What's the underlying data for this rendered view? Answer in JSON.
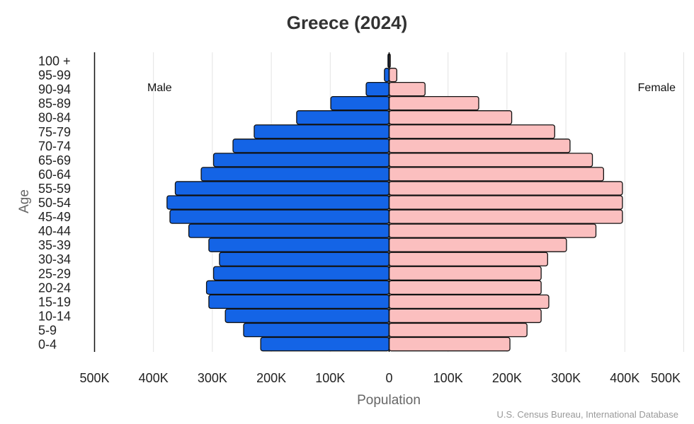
{
  "chart_data": {
    "type": "bar",
    "orientation": "horizontal-pyramid",
    "title": "Greece (2024)",
    "xlabel": "Population",
    "ylabel": "Age",
    "xlim": [
      -500000,
      500000
    ],
    "xticks": [
      "500K",
      "400K",
      "300K",
      "200K",
      "100K",
      "0",
      "100K",
      "200K",
      "300K",
      "400K",
      "500K"
    ],
    "categories": [
      "0-4",
      "5-9",
      "10-14",
      "15-19",
      "20-24",
      "25-29",
      "30-34",
      "35-39",
      "40-44",
      "45-49",
      "50-54",
      "55-59",
      "60-64",
      "65-69",
      "70-74",
      "75-79",
      "80-84",
      "85-89",
      "90-94",
      "95-99",
      "100 +"
    ],
    "series": [
      {
        "name": "Male",
        "color": "#1464e6",
        "values": [
          218000,
          247000,
          278000,
          306000,
          310000,
          298000,
          288000,
          306000,
          340000,
          372000,
          377000,
          363000,
          319000,
          298000,
          265000,
          229000,
          157000,
          99000,
          39000,
          8000,
          2000
        ]
      },
      {
        "name": "Female",
        "color": "#fbbfbf",
        "values": [
          205000,
          234000,
          258000,
          271000,
          258000,
          258000,
          269000,
          301000,
          351000,
          396000,
          396000,
          396000,
          364000,
          345000,
          307000,
          281000,
          208000,
          152000,
          61000,
          13000,
          2000
        ]
      }
    ],
    "grid": true,
    "source": "U.S. Census Bureau, International Database"
  }
}
